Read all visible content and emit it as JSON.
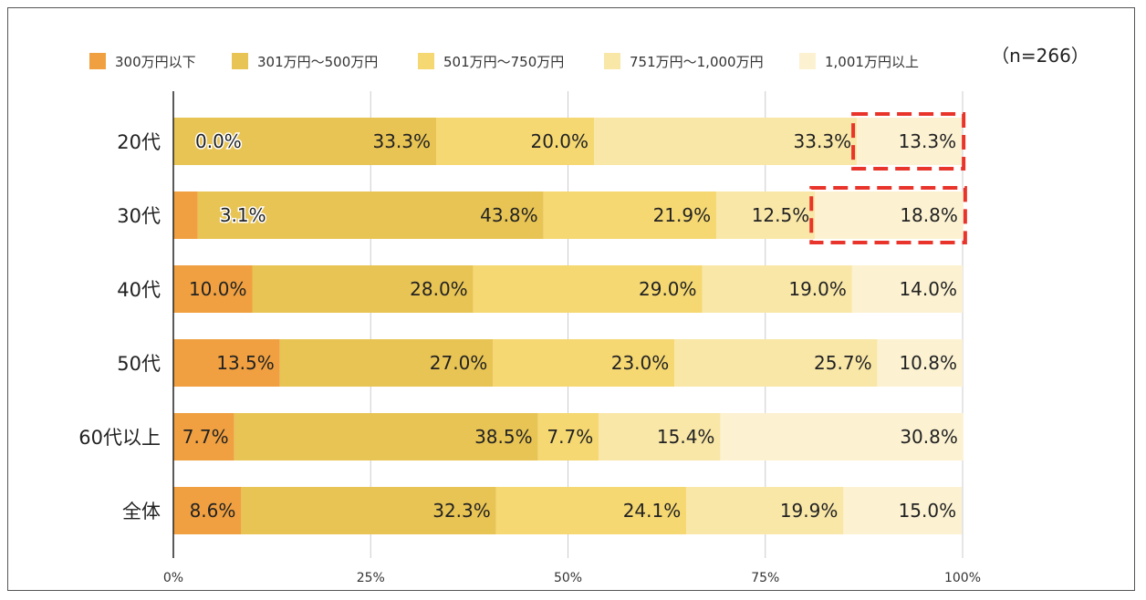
{
  "chart_data": {
    "type": "bar",
    "orientation": "horizontal",
    "stacked": true,
    "sample_size_label": "（n=266）",
    "categories": [
      "20代",
      "30代",
      "40代",
      "50代",
      "60代以上",
      "全体"
    ],
    "series": [
      {
        "name": "300万円以下",
        "color": "#f0a040",
        "values": [
          0.0,
          3.1,
          10.0,
          13.5,
          7.7,
          8.6
        ],
        "labels": [
          "0.0%",
          "3.1%",
          "10.0%",
          "13.5%",
          "7.7%",
          "8.6%"
        ]
      },
      {
        "name": "301万円～500万円",
        "color": "#e8c454",
        "values": [
          33.3,
          43.8,
          28.0,
          27.0,
          38.5,
          32.3
        ],
        "labels": [
          "33.3%",
          "43.8%",
          "28.0%",
          "27.0%",
          "38.5%",
          "32.3%"
        ]
      },
      {
        "name": "501万円～750万円",
        "color": "#f5d872",
        "values": [
          20.0,
          21.9,
          29.0,
          23.0,
          7.7,
          24.1
        ],
        "labels": [
          "20.0%",
          "21.9%",
          "29.0%",
          "23.0%",
          "7.7%",
          "24.1%"
        ]
      },
      {
        "name": "751万円～1,000万円",
        "color": "#f9e7a8",
        "values": [
          33.3,
          12.5,
          19.0,
          25.7,
          15.4,
          19.9
        ],
        "labels": [
          "33.3%",
          "12.5%",
          "19.0%",
          "25.7%",
          "15.4%",
          "19.9%"
        ]
      },
      {
        "name": "1,001万円以上",
        "color": "#fcf2d2",
        "values": [
          13.3,
          18.8,
          14.0,
          10.8,
          30.8,
          15.0
        ],
        "labels": [
          "13.3%",
          "18.8%",
          "14.0%",
          "10.8%",
          "30.8%",
          "15.0%"
        ]
      }
    ],
    "xlim": [
      0,
      100
    ],
    "x_ticks": [
      0,
      25,
      50,
      75,
      100
    ],
    "x_tick_labels": [
      "0%",
      "25%",
      "50%",
      "75%",
      "100%"
    ],
    "grid": true,
    "legend_position": "top",
    "highlights": [
      {
        "category": "20代",
        "series": "1,001万円以上",
        "style": "red-dashed-box"
      },
      {
        "category": "30代",
        "series": "1,001万円以上",
        "style": "red-dashed-box"
      }
    ]
  }
}
